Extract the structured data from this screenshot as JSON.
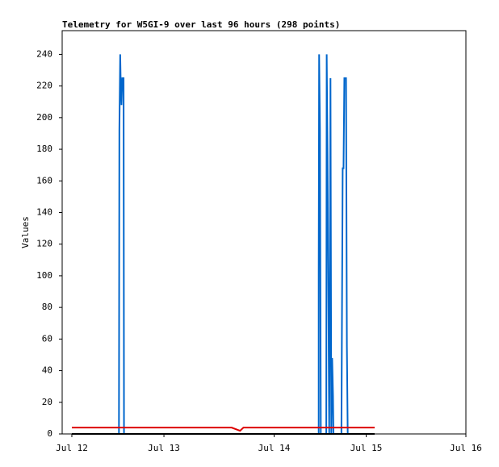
{
  "chart_data": {
    "type": "line",
    "title": "Telemetry for W5GI-9 over last 96 hours (298 points)",
    "y_label": "Values",
    "xlim": [
      0,
      96
    ],
    "xticks": [
      {
        "value": 2.3,
        "label": "Jul 12"
      },
      {
        "value": 24.2,
        "label": "Jul 13"
      },
      {
        "value": 50.4,
        "label": "Jul 14"
      },
      {
        "value": 72.3,
        "label": "Jul 15"
      },
      {
        "value": 96,
        "label": "Jul 16"
      }
    ],
    "ylim": [
      0,
      255
    ],
    "yticks": [
      0,
      20,
      40,
      60,
      80,
      100,
      120,
      140,
      160,
      180,
      200,
      220,
      240
    ],
    "series": [
      {
        "color": "#0066cc",
        "x": [
          13.5,
          13.6,
          13.8,
          13.9,
          14.1,
          14.3,
          14.6,
          14.7,
          30,
          61.0,
          61.0,
          61.1,
          61.3,
          61.5,
          62.8,
          62.9,
          63.1,
          63.3,
          63.5,
          63.7,
          63.8,
          64.0,
          64.2,
          64.4,
          64.5,
          64.6,
          66.4,
          66.5,
          66.7,
          66.9,
          67.1,
          67.5,
          67.7,
          67.9
        ],
        "values": [
          0,
          192,
          240,
          225,
          208,
          225,
          225,
          0,
          null,
          0,
          104,
          240,
          192,
          0,
          0,
          240,
          176,
          88,
          0,
          112,
          225,
          0,
          48,
          24,
          0,
          0,
          0,
          56,
          168,
          168,
          225,
          225,
          56,
          0
        ]
      },
      {
        "color": "#dd0000",
        "x": [
          2.3,
          40.3,
          42.3,
          43.1,
          74.3
        ],
        "values": [
          4,
          4,
          2,
          4,
          4
        ]
      },
      {
        "color": "#000000",
        "x": [
          2.3,
          74.3
        ],
        "values": [
          0,
          0
        ]
      }
    ]
  }
}
